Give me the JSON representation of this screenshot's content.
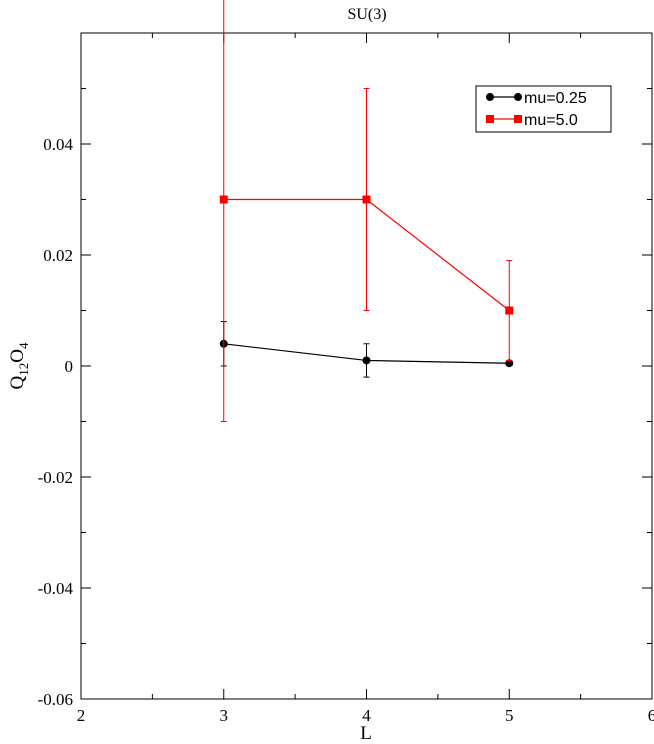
{
  "chart_data": {
    "type": "line",
    "title": "SU(3)",
    "xlabel": "L",
    "ylabel": {
      "main": "Q",
      "sub1": "12",
      "mid": "O",
      "sub2": "4"
    },
    "xlim": [
      2,
      6
    ],
    "ylim": [
      -0.06,
      0.06
    ],
    "x_ticks": [
      2,
      3,
      4,
      5,
      6
    ],
    "x_tick_labels": [
      "2",
      "3",
      "4",
      "5",
      "6"
    ],
    "y_ticks": [
      -0.06,
      -0.04,
      -0.02,
      0,
      0.02,
      0.04
    ],
    "y_tick_labels": [
      "-0.06",
      "-0.04",
      "-0.02",
      "0",
      "0.02",
      "0.04"
    ],
    "grid": false,
    "legend_position": "top-right",
    "series": [
      {
        "name": "mu=0.25",
        "color": "#000000",
        "marker": "circle",
        "x": [
          3,
          4,
          5
        ],
        "y": [
          0.004,
          0.001,
          0.0005
        ],
        "err": [
          0.004,
          0.003,
          0.0003
        ]
      },
      {
        "name": "mu=5.0",
        "color": "#ff0000",
        "marker": "square",
        "x": [
          3,
          4,
          5
        ],
        "y": [
          0.03,
          0.03,
          0.01
        ],
        "err": [
          0.04,
          0.02,
          0.009
        ]
      }
    ]
  }
}
